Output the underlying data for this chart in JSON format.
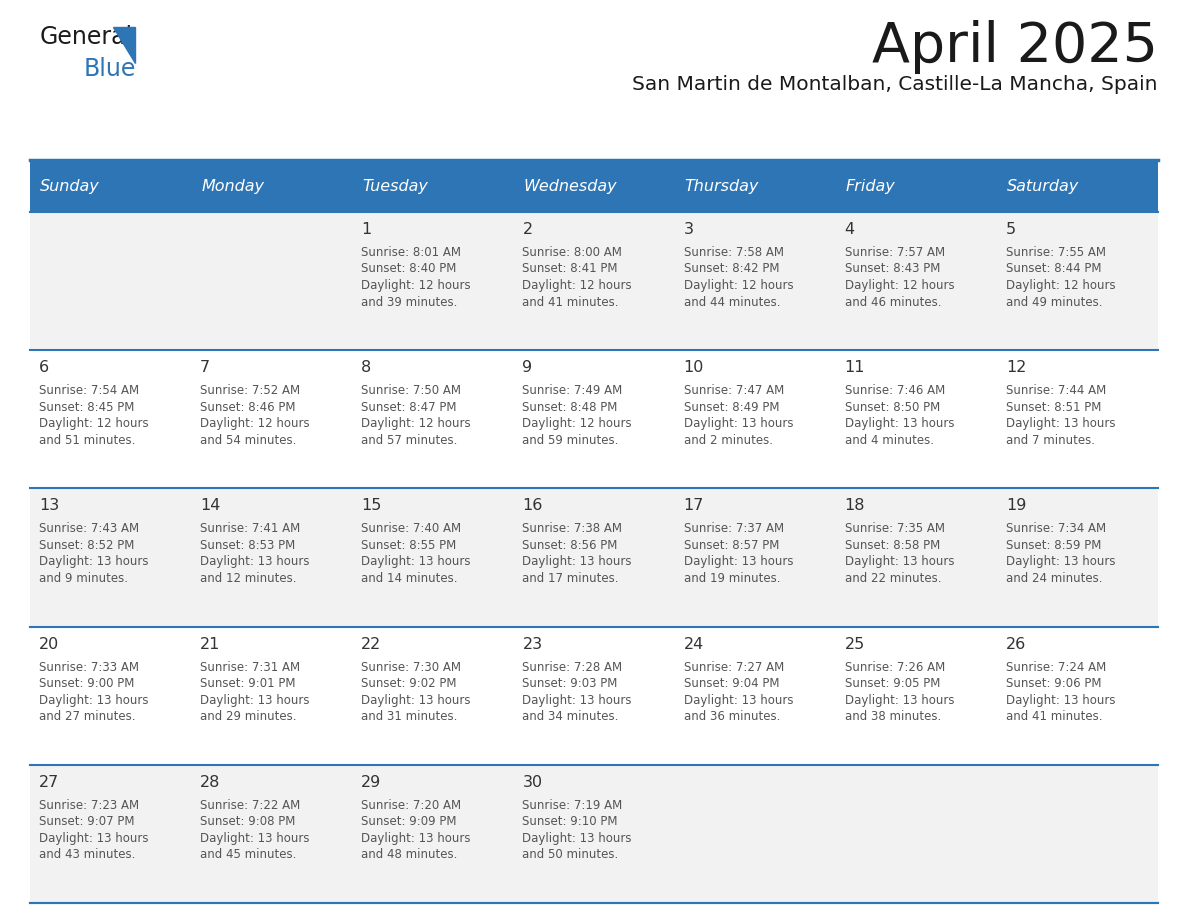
{
  "title": "April 2025",
  "subtitle": "San Martin de Montalban, Castille-La Mancha, Spain",
  "days_of_week": [
    "Sunday",
    "Monday",
    "Tuesday",
    "Wednesday",
    "Thursday",
    "Friday",
    "Saturday"
  ],
  "header_bg": "#2E75B6",
  "header_text": "#FFFFFF",
  "row_bg_odd": "#F2F2F2",
  "row_bg_even": "#FFFFFF",
  "row_separator": "#2E75B6",
  "title_color": "#1a1a1a",
  "subtitle_color": "#1a1a1a",
  "day_number_color": "#333333",
  "cell_text_color": "#555555",
  "calendar_data": [
    [
      null,
      null,
      {
        "day": 1,
        "sunrise": "8:01 AM",
        "sunset": "8:40 PM",
        "daylight": "12 hours\nand 39 minutes."
      },
      {
        "day": 2,
        "sunrise": "8:00 AM",
        "sunset": "8:41 PM",
        "daylight": "12 hours\nand 41 minutes."
      },
      {
        "day": 3,
        "sunrise": "7:58 AM",
        "sunset": "8:42 PM",
        "daylight": "12 hours\nand 44 minutes."
      },
      {
        "day": 4,
        "sunrise": "7:57 AM",
        "sunset": "8:43 PM",
        "daylight": "12 hours\nand 46 minutes."
      },
      {
        "day": 5,
        "sunrise": "7:55 AM",
        "sunset": "8:44 PM",
        "daylight": "12 hours\nand 49 minutes."
      }
    ],
    [
      {
        "day": 6,
        "sunrise": "7:54 AM",
        "sunset": "8:45 PM",
        "daylight": "12 hours\nand 51 minutes."
      },
      {
        "day": 7,
        "sunrise": "7:52 AM",
        "sunset": "8:46 PM",
        "daylight": "12 hours\nand 54 minutes."
      },
      {
        "day": 8,
        "sunrise": "7:50 AM",
        "sunset": "8:47 PM",
        "daylight": "12 hours\nand 57 minutes."
      },
      {
        "day": 9,
        "sunrise": "7:49 AM",
        "sunset": "8:48 PM",
        "daylight": "12 hours\nand 59 minutes."
      },
      {
        "day": 10,
        "sunrise": "7:47 AM",
        "sunset": "8:49 PM",
        "daylight": "13 hours\nand 2 minutes."
      },
      {
        "day": 11,
        "sunrise": "7:46 AM",
        "sunset": "8:50 PM",
        "daylight": "13 hours\nand 4 minutes."
      },
      {
        "day": 12,
        "sunrise": "7:44 AM",
        "sunset": "8:51 PM",
        "daylight": "13 hours\nand 7 minutes."
      }
    ],
    [
      {
        "day": 13,
        "sunrise": "7:43 AM",
        "sunset": "8:52 PM",
        "daylight": "13 hours\nand 9 minutes."
      },
      {
        "day": 14,
        "sunrise": "7:41 AM",
        "sunset": "8:53 PM",
        "daylight": "13 hours\nand 12 minutes."
      },
      {
        "day": 15,
        "sunrise": "7:40 AM",
        "sunset": "8:55 PM",
        "daylight": "13 hours\nand 14 minutes."
      },
      {
        "day": 16,
        "sunrise": "7:38 AM",
        "sunset": "8:56 PM",
        "daylight": "13 hours\nand 17 minutes."
      },
      {
        "day": 17,
        "sunrise": "7:37 AM",
        "sunset": "8:57 PM",
        "daylight": "13 hours\nand 19 minutes."
      },
      {
        "day": 18,
        "sunrise": "7:35 AM",
        "sunset": "8:58 PM",
        "daylight": "13 hours\nand 22 minutes."
      },
      {
        "day": 19,
        "sunrise": "7:34 AM",
        "sunset": "8:59 PM",
        "daylight": "13 hours\nand 24 minutes."
      }
    ],
    [
      {
        "day": 20,
        "sunrise": "7:33 AM",
        "sunset": "9:00 PM",
        "daylight": "13 hours\nand 27 minutes."
      },
      {
        "day": 21,
        "sunrise": "7:31 AM",
        "sunset": "9:01 PM",
        "daylight": "13 hours\nand 29 minutes."
      },
      {
        "day": 22,
        "sunrise": "7:30 AM",
        "sunset": "9:02 PM",
        "daylight": "13 hours\nand 31 minutes."
      },
      {
        "day": 23,
        "sunrise": "7:28 AM",
        "sunset": "9:03 PM",
        "daylight": "13 hours\nand 34 minutes."
      },
      {
        "day": 24,
        "sunrise": "7:27 AM",
        "sunset": "9:04 PM",
        "daylight": "13 hours\nand 36 minutes."
      },
      {
        "day": 25,
        "sunrise": "7:26 AM",
        "sunset": "9:05 PM",
        "daylight": "13 hours\nand 38 minutes."
      },
      {
        "day": 26,
        "sunrise": "7:24 AM",
        "sunset": "9:06 PM",
        "daylight": "13 hours\nand 41 minutes."
      }
    ],
    [
      {
        "day": 27,
        "sunrise": "7:23 AM",
        "sunset": "9:07 PM",
        "daylight": "13 hours\nand 43 minutes."
      },
      {
        "day": 28,
        "sunrise": "7:22 AM",
        "sunset": "9:08 PM",
        "daylight": "13 hours\nand 45 minutes."
      },
      {
        "day": 29,
        "sunrise": "7:20 AM",
        "sunset": "9:09 PM",
        "daylight": "13 hours\nand 48 minutes."
      },
      {
        "day": 30,
        "sunrise": "7:19 AM",
        "sunset": "9:10 PM",
        "daylight": "13 hours\nand 50 minutes."
      },
      null,
      null,
      null
    ]
  ]
}
